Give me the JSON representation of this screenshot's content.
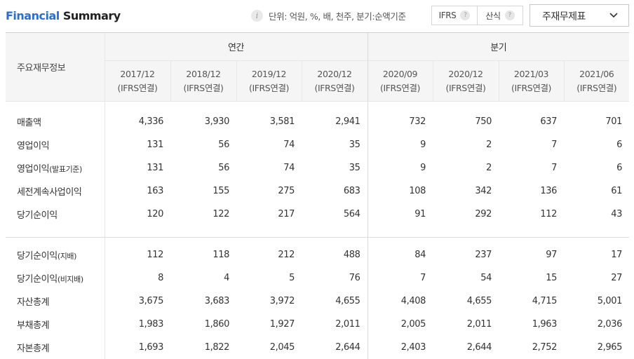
{
  "header": {
    "title_part1": "Financial",
    "title_part2": "Summary",
    "unit_text": "단위: 억원, %, 배, 천주, 분기:순액기준",
    "toggle": {
      "ifrs_label": "IFRS",
      "calc_label": "산식",
      "help_glyph": "?"
    },
    "statement_select": "주재무제표",
    "info_glyph": "i"
  },
  "table": {
    "corner_label": "주요재무정보",
    "group_annual": "연간",
    "group_quarter": "분기",
    "periods": [
      {
        "date": "2017/12",
        "basis": "(IFRS연결)"
      },
      {
        "date": "2018/12",
        "basis": "(IFRS연결)"
      },
      {
        "date": "2019/12",
        "basis": "(IFRS연결)"
      },
      {
        "date": "2020/12",
        "basis": "(IFRS연결)"
      },
      {
        "date": "2020/09",
        "basis": "(IFRS연결)"
      },
      {
        "date": "2020/12",
        "basis": "(IFRS연결)"
      },
      {
        "date": "2021/03",
        "basis": "(IFRS연결)"
      },
      {
        "date": "2021/06",
        "basis": "(IFRS연결)"
      }
    ],
    "rows_block1": [
      {
        "label": "매출액",
        "label_note": "",
        "values": [
          "4,336",
          "3,930",
          "3,581",
          "2,941",
          "732",
          "750",
          "637",
          "701"
        ]
      },
      {
        "label": "영업이익",
        "label_note": "",
        "values": [
          "131",
          "56",
          "74",
          "35",
          "9",
          "2",
          "7",
          "6"
        ]
      },
      {
        "label": "영업이익",
        "label_note": "(발표기준)",
        "values": [
          "131",
          "56",
          "74",
          "35",
          "9",
          "2",
          "7",
          "6"
        ]
      },
      {
        "label": "세전계속사업이익",
        "label_note": "",
        "values": [
          "163",
          "155",
          "275",
          "683",
          "108",
          "342",
          "136",
          "61"
        ]
      },
      {
        "label": "당기순이익",
        "label_note": "",
        "values": [
          "120",
          "122",
          "217",
          "564",
          "91",
          "292",
          "112",
          "43"
        ]
      }
    ],
    "rows_block2": [
      {
        "label": "당기순이익",
        "label_note": "(지배)",
        "values": [
          "112",
          "118",
          "212",
          "488",
          "84",
          "237",
          "97",
          "17"
        ]
      },
      {
        "label": "당기순이익",
        "label_note": "(비지배)",
        "values": [
          "8",
          "4",
          "5",
          "76",
          "7",
          "54",
          "15",
          "27"
        ]
      },
      {
        "label": "자산총계",
        "label_note": "",
        "values": [
          "3,675",
          "3,683",
          "3,972",
          "4,655",
          "4,408",
          "4,655",
          "4,715",
          "5,001"
        ]
      },
      {
        "label": "부채총계",
        "label_note": "",
        "values": [
          "1,983",
          "1,860",
          "1,927",
          "2,011",
          "2,005",
          "2,011",
          "1,963",
          "2,036"
        ]
      },
      {
        "label": "자본총계",
        "label_note": "",
        "values": [
          "1,693",
          "1,822",
          "2,045",
          "2,644",
          "2,403",
          "2,644",
          "2,752",
          "2,965"
        ]
      }
    ]
  }
}
